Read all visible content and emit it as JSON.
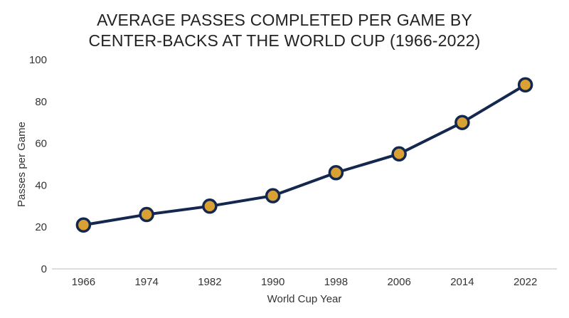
{
  "title_lines": [
    "AVERAGE PASSES COMPLETED PER GAME BY",
    "CENTER-BACKS AT THE WORLD CUP (1966-2022)"
  ],
  "colors": {
    "line": "#14274e",
    "marker_fill": "#d9a034",
    "marker_stroke": "#14274e",
    "axis": "#bbbbbb"
  },
  "chart_data": {
    "type": "line",
    "title": "AVERAGE PASSES COMPLETED PER GAME BY CENTER-BACKS AT THE WORLD CUP (1966-2022)",
    "xlabel": "World Cup Year",
    "ylabel": "Passes per Game",
    "categories": [
      "1966",
      "1974",
      "1982",
      "1990",
      "1998",
      "2006",
      "2014",
      "2022"
    ],
    "values": [
      21,
      26,
      30,
      35,
      46,
      55,
      70,
      88
    ],
    "ylim": [
      0,
      100
    ],
    "yticks": [
      0,
      20,
      40,
      60,
      80,
      100
    ],
    "grid": false,
    "legend": "none"
  }
}
